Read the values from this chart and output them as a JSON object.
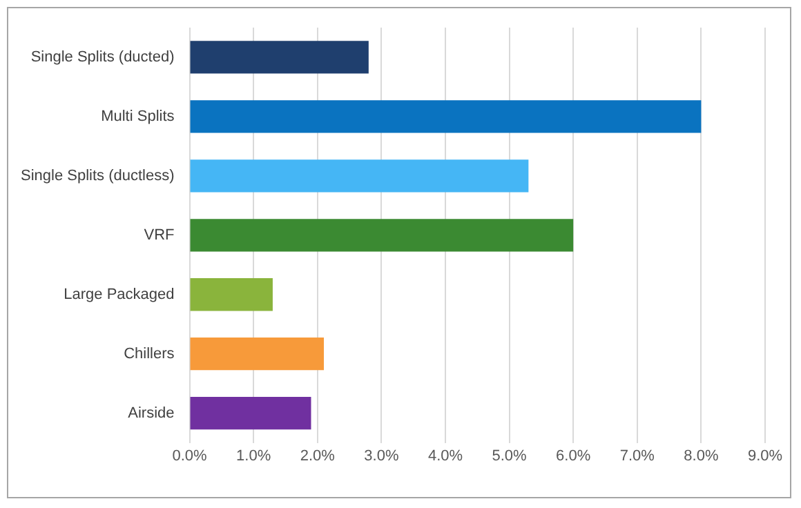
{
  "chart_data": {
    "type": "bar",
    "orientation": "horizontal",
    "categories": [
      "Single Splits (ducted)",
      "Multi Splits",
      "Single Splits (ductless)",
      "VRF",
      "Large Packaged",
      "Chillers",
      "Airside"
    ],
    "values": [
      2.8,
      8.0,
      5.3,
      6.0,
      1.3,
      2.1,
      1.9
    ],
    "colors": [
      "#1f3f6e",
      "#0a73c0",
      "#45b6f5",
      "#3b8a32",
      "#8ab43c",
      "#f79a3a",
      "#7030a0"
    ],
    "xlim": [
      0,
      9
    ],
    "xticks": [
      {
        "value": 0,
        "label": "0.0%"
      },
      {
        "value": 1,
        "label": "1.0%"
      },
      {
        "value": 2,
        "label": "2.0%"
      },
      {
        "value": 3,
        "label": "3.0%"
      },
      {
        "value": 4,
        "label": "4.0%"
      },
      {
        "value": 5,
        "label": "5.0%"
      },
      {
        "value": 6,
        "label": "6.0%"
      },
      {
        "value": 7,
        "label": "7.0%"
      },
      {
        "value": 8,
        "label": "8.0%"
      },
      {
        "value": 9,
        "label": "9.0%"
      }
    ],
    "grid": "x",
    "legend": false
  }
}
